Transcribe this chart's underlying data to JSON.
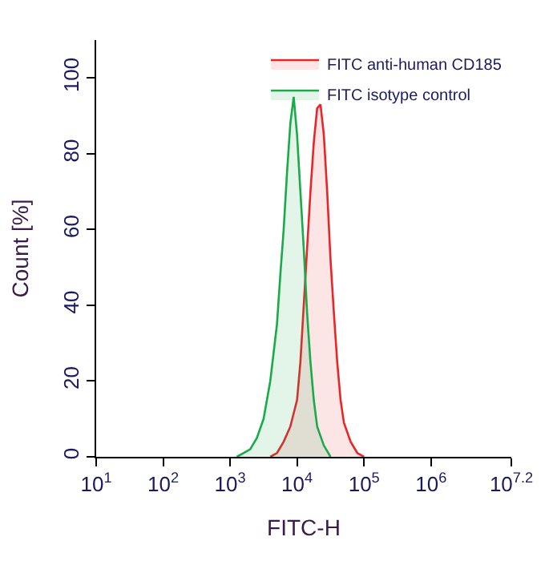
{
  "chart_data": {
    "type": "area",
    "xlabel": "FITC-H",
    "ylabel": "Count [%]",
    "log": "x",
    "xlim": [
      10,
      15848932
    ],
    "ylim": [
      0,
      110
    ],
    "xticks": [
      {
        "value": 10,
        "label": "10$^{1}$"
      },
      {
        "value": 100,
        "label": "10$^{2}$"
      },
      {
        "value": 1000,
        "label": "10$^{3}$"
      },
      {
        "value": 10000,
        "label": "10$^{4}$"
      },
      {
        "value": 100000,
        "label": "10$^{5}$"
      },
      {
        "value": 1000000,
        "label": "10$^{6}$"
      },
      {
        "value": 15848932,
        "label": "10$^{7.2}$"
      }
    ],
    "yticks": [
      0,
      20,
      40,
      60,
      80,
      100
    ],
    "legend": "top right",
    "marker": "none",
    "line_style": "solid",
    "series": [
      {
        "name": "FITC anti-human CD185",
        "color": "#e8262a",
        "x": [
          3981,
          5012,
          6310,
          7943,
          10000,
          11220,
          12589,
          14125,
          15849,
          17783,
          19953,
          22387,
          25119,
          28184,
          31623,
          35481,
          39811,
          44668,
          50119,
          63096,
          79433,
          100000
        ],
        "values": [
          0,
          1,
          4,
          8,
          15,
          25,
          40,
          55,
          70,
          83,
          92,
          93,
          85,
          70,
          52,
          38,
          25,
          15,
          9,
          4,
          1,
          0
        ]
      },
      {
        "name": "FITC isotype control",
        "color": "#1aaa4a",
        "x": [
          1259,
          1585,
          1995,
          2512,
          3162,
          3981,
          5012,
          5623,
          6310,
          7079,
          7943,
          8913,
          10000,
          11220,
          12589,
          14125,
          15849,
          17783,
          19953,
          25119,
          31623
        ],
        "values": [
          0,
          1,
          2,
          5,
          10,
          20,
          35,
          48,
          60,
          75,
          88,
          95,
          85,
          70,
          55,
          38,
          25,
          15,
          8,
          3,
          0
        ]
      }
    ]
  }
}
